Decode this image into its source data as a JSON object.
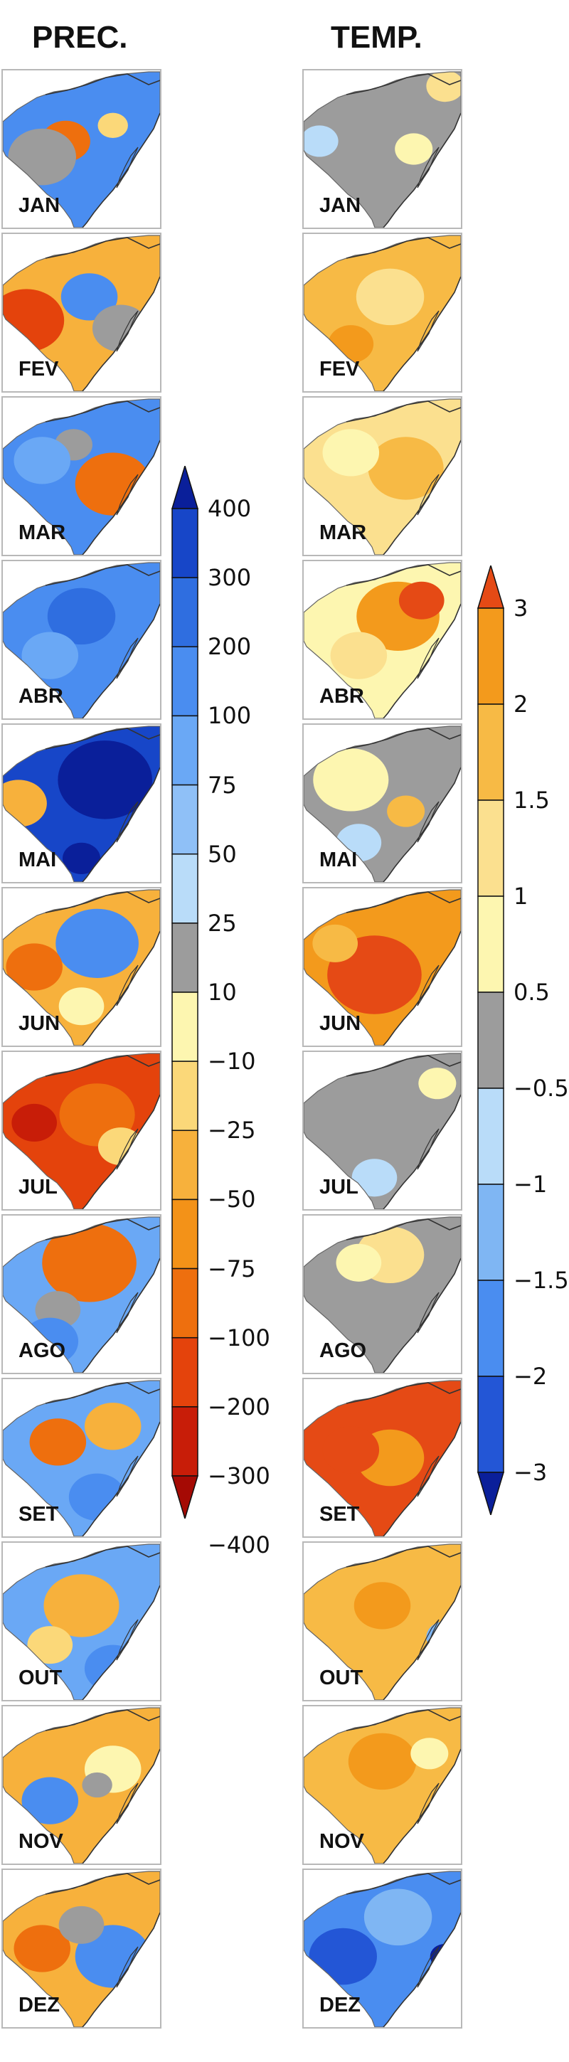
{
  "titles": {
    "precip": "PREC.",
    "temp": "TEMP."
  },
  "months": [
    "JAN",
    "FEV",
    "MAR",
    "ABR",
    "MAI",
    "JUN",
    "JUL",
    "AGO",
    "SET",
    "OUT",
    "NOV",
    "DEZ"
  ],
  "precip_scale": {
    "labels": [
      "400",
      "300",
      "200",
      "100",
      "75",
      "50",
      "25",
      "10",
      "−10",
      "−25",
      "−50",
      "−75",
      "−100",
      "−200",
      "−300",
      "−400"
    ],
    "colors": [
      "#0a1f9a",
      "#1746c8",
      "#2f6ee0",
      "#4a8df0",
      "#6aa8f5",
      "#8fc0f7",
      "#b9dcf9",
      "#9c9c9c",
      "#fdf6b0",
      "#fbd879",
      "#f7b13c",
      "#f39218",
      "#ee6f0e",
      "#e4430c",
      "#c81d08",
      "#a50a04"
    ]
  },
  "temp_scale": {
    "labels": [
      "3",
      "2",
      "1.5",
      "1",
      "0.5",
      "−0.5",
      "−1",
      "−1.5",
      "−2",
      "−3"
    ],
    "colors": [
      "#e54a15",
      "#f39a1c",
      "#f7ba45",
      "#fbe08f",
      "#fdf6b0",
      "#9c9c9c",
      "#b9dcf9",
      "#7fb6f3",
      "#4a8df0",
      "#2356d6",
      "#0a1f9a"
    ]
  },
  "panels": {
    "precip": [
      {
        "base": "#4a8df0",
        "blobs": [
          [
            "#ee6f0e",
            0.4,
            0.45,
            0.13
          ],
          [
            "#9c9c9c",
            0.25,
            0.55,
            0.18
          ],
          [
            "#fbd879",
            0.7,
            0.35,
            0.08
          ]
        ]
      },
      {
        "base": "#f7b13c",
        "blobs": [
          [
            "#e4430c",
            0.15,
            0.55,
            0.2
          ],
          [
            "#4a8df0",
            0.55,
            0.4,
            0.15
          ],
          [
            "#9c9c9c",
            0.75,
            0.6,
            0.15
          ]
        ]
      },
      {
        "base": "#4a8df0",
        "blobs": [
          [
            "#ee6f0e",
            0.7,
            0.55,
            0.2
          ],
          [
            "#9c9c9c",
            0.45,
            0.3,
            0.1
          ],
          [
            "#6aa8f5",
            0.25,
            0.4,
            0.15
          ]
        ]
      },
      {
        "base": "#4a8df0",
        "blobs": [
          [
            "#2f6ee0",
            0.5,
            0.35,
            0.18
          ],
          [
            "#6aa8f5",
            0.3,
            0.6,
            0.15
          ]
        ]
      },
      {
        "base": "#1746c8",
        "blobs": [
          [
            "#0a1f9a",
            0.65,
            0.35,
            0.25
          ],
          [
            "#f7b13c",
            0.1,
            0.5,
            0.15
          ],
          [
            "#0a1f9a",
            0.5,
            0.85,
            0.1
          ]
        ]
      },
      {
        "base": "#f7b13c",
        "blobs": [
          [
            "#4a8df0",
            0.6,
            0.35,
            0.22
          ],
          [
            "#ee6f0e",
            0.2,
            0.5,
            0.15
          ],
          [
            "#fdf6b0",
            0.5,
            0.75,
            0.12
          ]
        ]
      },
      {
        "base": "#e4430c",
        "blobs": [
          [
            "#ee6f0e",
            0.6,
            0.4,
            0.2
          ],
          [
            "#fbd879",
            0.75,
            0.6,
            0.12
          ],
          [
            "#c81d08",
            0.2,
            0.45,
            0.12
          ]
        ]
      },
      {
        "base": "#6aa8f5",
        "blobs": [
          [
            "#ee6f0e",
            0.55,
            0.3,
            0.25
          ],
          [
            "#9c9c9c",
            0.35,
            0.6,
            0.12
          ],
          [
            "#4a8df0",
            0.3,
            0.8,
            0.15
          ]
        ]
      },
      {
        "base": "#6aa8f5",
        "blobs": [
          [
            "#ee6f0e",
            0.35,
            0.4,
            0.15
          ],
          [
            "#f7b13c",
            0.7,
            0.3,
            0.15
          ],
          [
            "#4a8df0",
            0.6,
            0.75,
            0.15
          ]
        ]
      },
      {
        "base": "#6aa8f5",
        "blobs": [
          [
            "#f7b13c",
            0.5,
            0.4,
            0.2
          ],
          [
            "#fbd879",
            0.3,
            0.65,
            0.12
          ],
          [
            "#4a8df0",
            0.7,
            0.8,
            0.15
          ]
        ]
      },
      {
        "base": "#f7b13c",
        "blobs": [
          [
            "#4a8df0",
            0.3,
            0.6,
            0.15
          ],
          [
            "#fdf6b0",
            0.7,
            0.4,
            0.15
          ],
          [
            "#9c9c9c",
            0.6,
            0.5,
            0.08
          ]
        ]
      },
      {
        "base": "#f7b13c",
        "blobs": [
          [
            "#ee6f0e",
            0.25,
            0.5,
            0.15
          ],
          [
            "#4a8df0",
            0.7,
            0.55,
            0.2
          ],
          [
            "#9c9c9c",
            0.5,
            0.35,
            0.12
          ]
        ]
      }
    ],
    "temp": [
      {
        "base": "#9c9c9c",
        "blobs": [
          [
            "#b9dcf9",
            0.1,
            0.45,
            0.1
          ],
          [
            "#fdf6b0",
            0.7,
            0.5,
            0.1
          ],
          [
            "#fbe08f",
            0.9,
            0.1,
            0.1
          ]
        ]
      },
      {
        "base": "#f7ba45",
        "blobs": [
          [
            "#fbe08f",
            0.55,
            0.4,
            0.18
          ],
          [
            "#f39a1c",
            0.3,
            0.7,
            0.12
          ]
        ]
      },
      {
        "base": "#fbe08f",
        "blobs": [
          [
            "#f7ba45",
            0.65,
            0.45,
            0.2
          ],
          [
            "#fdf6b0",
            0.3,
            0.35,
            0.15
          ]
        ]
      },
      {
        "base": "#fdf6b0",
        "blobs": [
          [
            "#f39a1c",
            0.6,
            0.35,
            0.22
          ],
          [
            "#e54a15",
            0.75,
            0.25,
            0.12
          ],
          [
            "#fbe08f",
            0.35,
            0.6,
            0.15
          ]
        ]
      },
      {
        "base": "#9c9c9c",
        "blobs": [
          [
            "#fdf6b0",
            0.3,
            0.35,
            0.2
          ],
          [
            "#f7ba45",
            0.65,
            0.55,
            0.1
          ],
          [
            "#b9dcf9",
            0.35,
            0.75,
            0.12
          ]
        ]
      },
      {
        "base": "#f39a1c",
        "blobs": [
          [
            "#e54a15",
            0.45,
            0.55,
            0.25
          ],
          [
            "#f7ba45",
            0.2,
            0.35,
            0.12
          ]
        ]
      },
      {
        "base": "#9c9c9c",
        "blobs": [
          [
            "#b9dcf9",
            0.45,
            0.8,
            0.12
          ],
          [
            "#fdf6b0",
            0.85,
            0.2,
            0.1
          ]
        ]
      },
      {
        "base": "#9c9c9c",
        "blobs": [
          [
            "#fbe08f",
            0.55,
            0.25,
            0.18
          ],
          [
            "#fdf6b0",
            0.35,
            0.3,
            0.12
          ]
        ]
      },
      {
        "base": "#e54a15",
        "blobs": [
          [
            "#f39a1c",
            0.55,
            0.5,
            0.18
          ],
          [
            "#e54a15",
            0.3,
            0.45,
            0.15
          ]
        ]
      },
      {
        "base": "#f7ba45",
        "blobs": [
          [
            "#f39a1c",
            0.5,
            0.4,
            0.15
          ],
          [
            "#7fb6f3",
            0.9,
            0.6,
            0.1
          ]
        ]
      },
      {
        "base": "#f7ba45",
        "blobs": [
          [
            "#f39a1c",
            0.5,
            0.35,
            0.18
          ],
          [
            "#fdf6b0",
            0.8,
            0.3,
            0.1
          ],
          [
            "#7fb6f3",
            0.9,
            0.7,
            0.1
          ]
        ]
      },
      {
        "base": "#4a8df0",
        "blobs": [
          [
            "#2356d6",
            0.25,
            0.55,
            0.18
          ],
          [
            "#7fb6f3",
            0.6,
            0.3,
            0.18
          ],
          [
            "#0a1f9a",
            0.9,
            0.55,
            0.08
          ]
        ]
      }
    ]
  }
}
